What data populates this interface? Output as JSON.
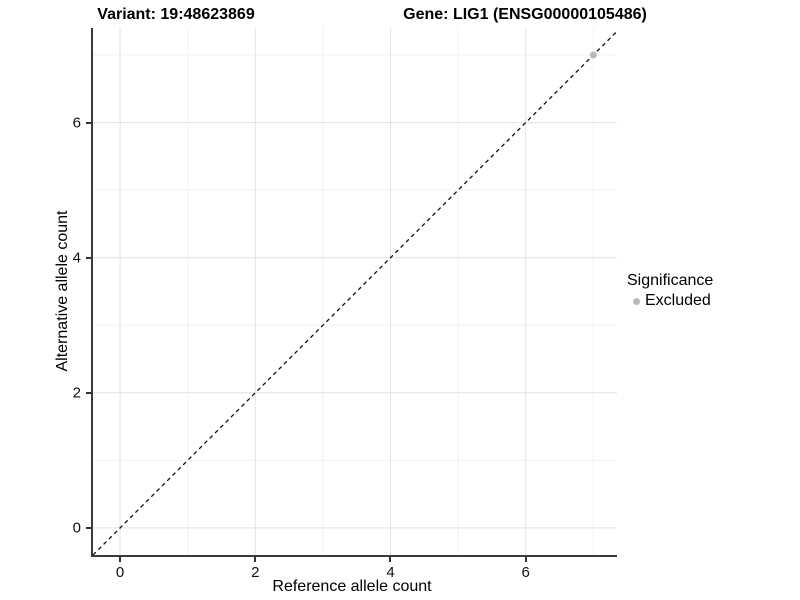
{
  "titles": {
    "variant": "Variant: 19:48623869",
    "gene": "Gene: LIG1 (ENSG00000105486)"
  },
  "axes": {
    "x": {
      "label": "Reference allele count",
      "major_ticks": [
        0,
        2,
        4,
        6
      ],
      "minor_ticks": [
        1,
        3,
        5,
        7
      ]
    },
    "y": {
      "label": "Alternative allele count",
      "major_ticks": [
        0,
        2,
        4,
        6
      ],
      "minor_ticks": [
        1,
        3,
        5,
        7
      ]
    }
  },
  "legend": {
    "title": "Significance",
    "items": [
      {
        "label": "Excluded",
        "color": "#b9b9b9"
      }
    ]
  },
  "colors": {
    "background": "#ffffff",
    "axis_line": "#3a3a3a",
    "major_grid": "#e4e4e4",
    "minor_grid": "#f2f2f2",
    "reference_line": "#111111",
    "point_excluded": "#b9b9b9"
  },
  "chart_data": {
    "type": "scatter",
    "title": "Variant: 19:48623869    Gene: LIG1 (ENSG00000105486)",
    "xlabel": "Reference allele count",
    "ylabel": "Alternative allele count",
    "xlim": [
      -0.4,
      7.35
    ],
    "ylim": [
      -0.4,
      7.4
    ],
    "x_ticks": [
      0,
      2,
      4,
      6
    ],
    "y_ticks": [
      0,
      2,
      4,
      6
    ],
    "x_minor_ticks": [
      1,
      3,
      5,
      7
    ],
    "y_minor_ticks": [
      1,
      3,
      5,
      7
    ],
    "grid": true,
    "legend_position": "right",
    "series": [
      {
        "name": "Excluded",
        "color": "#b9b9b9",
        "points": [
          {
            "x": 7,
            "y": 7
          }
        ]
      }
    ],
    "reference_line": {
      "type": "identity",
      "slope": 1,
      "intercept": 0,
      "style": "dashed",
      "color": "#111111"
    }
  }
}
